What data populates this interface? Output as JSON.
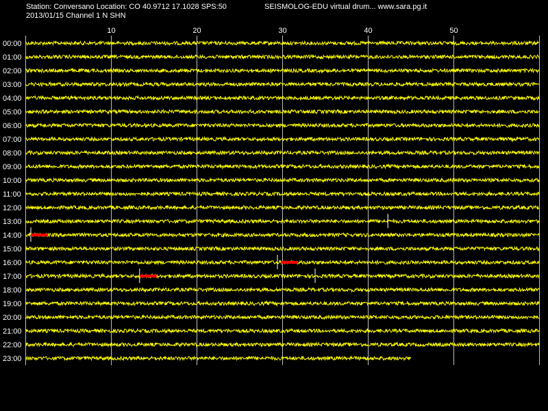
{
  "header": {
    "station_line": "Station: Conversano Location: CO 40.9712 17.1028 SPS:50",
    "app_line": "SEISMOLOG-EDU virtual drum... www.sara.pg.it",
    "date_channel_line": "2013/01/15  Channel 1 N SHN"
  },
  "colors": {
    "background": "#000000",
    "trace": "#ffff00",
    "event": "#ff0000",
    "grid": "#c0c0c0",
    "text": "#ffffff"
  },
  "chart_data": {
    "type": "line",
    "title": "",
    "xlabel": "",
    "ylabel": "",
    "x_unit_implied": "minutes",
    "xlim": [
      0,
      60
    ],
    "x_ticks": [
      10,
      20,
      30,
      40,
      50
    ],
    "grid": true,
    "rows": [
      {
        "label": "00:00",
        "start": 0,
        "end": 60
      },
      {
        "label": "01:00",
        "start": 0,
        "end": 60
      },
      {
        "label": "02:00",
        "start": 0,
        "end": 60
      },
      {
        "label": "03:00",
        "start": 0,
        "end": 60
      },
      {
        "label": "04:00",
        "start": 0,
        "end": 60
      },
      {
        "label": "05:00",
        "start": 0,
        "end": 60
      },
      {
        "label": "06:00",
        "start": 0,
        "end": 60
      },
      {
        "label": "07:00",
        "start": 0,
        "end": 60
      },
      {
        "label": "08:00",
        "start": 0,
        "end": 60
      },
      {
        "label": "09:00",
        "start": 0,
        "end": 60
      },
      {
        "label": "10:00",
        "start": 0,
        "end": 60
      },
      {
        "label": "11:00",
        "start": 0,
        "end": 60
      },
      {
        "label": "12:00",
        "start": 0,
        "end": 60
      },
      {
        "label": "13:00",
        "start": 0,
        "end": 60
      },
      {
        "label": "14:00",
        "start": 0,
        "end": 60
      },
      {
        "label": "15:00",
        "start": 0,
        "end": 60
      },
      {
        "label": "16:00",
        "start": 0,
        "end": 60
      },
      {
        "label": "17:00",
        "start": 0,
        "end": 60
      },
      {
        "label": "18:00",
        "start": 0,
        "end": 60
      },
      {
        "label": "19:00",
        "start": 0,
        "end": 60
      },
      {
        "label": "20:00",
        "start": 0,
        "end": 60
      },
      {
        "label": "21:00",
        "start": 0,
        "end": 60
      },
      {
        "label": "22:00",
        "start": 0,
        "end": 60
      },
      {
        "label": "23:00",
        "start": 0,
        "end": 45.0
      }
    ],
    "events": [
      {
        "row": "14:00",
        "start": 0.6,
        "end": 2.6
      },
      {
        "row": "16:00",
        "start": 29.8,
        "end": 31.8
      },
      {
        "row": "17:00",
        "start": 13.3,
        "end": 15.3
      }
    ],
    "spikes": [
      {
        "row": "13:00",
        "minute": 42.3
      },
      {
        "row": "14:00",
        "minute": 0.6
      },
      {
        "row": "16:00",
        "minute": 29.4
      },
      {
        "row": "17:00",
        "minute": 13.3
      },
      {
        "row": "17:00",
        "minute": 33.8
      }
    ]
  }
}
